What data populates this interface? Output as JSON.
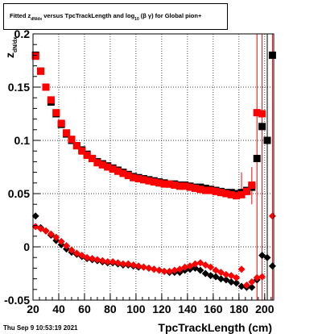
{
  "chart_data": {
    "type": "scatter",
    "title": {
      "prefix": "Fitted  z",
      "prefix_sub": "dN/dx",
      "middle": " versus TpcTrackLength and log",
      "middle_sub": "10",
      "paren": "(β  γ) for Global pion+"
    },
    "xlabel": "TpcTrackLength (cm)",
    "ylabel": "z",
    "ylabel_sub": "dN/dx",
    "xlim": [
      20,
      207
    ],
    "ylim": [
      -0.05,
      0.2
    ],
    "x_ticks": [
      20,
      40,
      60,
      80,
      100,
      120,
      140,
      160,
      180,
      200
    ],
    "y_ticks": [
      {
        "value": -0.05,
        "label": "-0.05"
      },
      {
        "value": 0,
        "label": "0"
      },
      {
        "value": 0.05,
        "label": "0.05"
      },
      {
        "value": 0.1,
        "label": "0.1"
      },
      {
        "value": 0.15,
        "label": "0.15"
      },
      {
        "value": 0.2,
        "label": "0.2"
      }
    ],
    "grid": true,
    "series": [
      {
        "marker": "square",
        "color": "#000000",
        "x": [
          22,
          26,
          30,
          34,
          38,
          42,
          46,
          50,
          54,
          58,
          62,
          66,
          70,
          74,
          78,
          82,
          86,
          90,
          94,
          98,
          102,
          106,
          110,
          114,
          118,
          122,
          126,
          130,
          134,
          138,
          142,
          146,
          150,
          154,
          158,
          162,
          166,
          170,
          174,
          178,
          182,
          186,
          190,
          194,
          198,
          202,
          206
        ],
        "y": [
          0.18,
          0.165,
          0.15,
          0.136,
          0.125,
          0.115,
          0.106,
          0.1,
          0.095,
          0.091,
          0.087,
          0.083,
          0.08,
          0.078,
          0.076,
          0.074,
          0.072,
          0.07,
          0.068,
          0.066,
          0.065,
          0.064,
          0.063,
          0.062,
          0.061,
          0.06,
          0.059,
          0.059,
          0.058,
          0.058,
          0.057,
          0.056,
          0.056,
          0.055,
          0.054,
          0.053,
          0.052,
          0.051,
          0.051,
          0.05,
          0.051,
          0.053,
          0.056,
          0.083,
          0.113,
          0.1,
          0.18
        ]
      },
      {
        "marker": "square",
        "color": "#ff0000",
        "x": [
          22,
          26,
          30,
          34,
          38,
          42,
          46,
          50,
          54,
          58,
          62,
          66,
          70,
          74,
          78,
          82,
          86,
          90,
          94,
          98,
          102,
          106,
          110,
          114,
          118,
          122,
          126,
          130,
          134,
          138,
          142,
          146,
          150,
          154,
          158,
          162,
          166,
          170,
          174,
          178,
          182,
          186,
          190,
          194,
          198
        ],
        "y": [
          0.179,
          0.165,
          0.15,
          0.138,
          0.126,
          0.116,
          0.107,
          0.101,
          0.095,
          0.09,
          0.086,
          0.083,
          0.079,
          0.077,
          0.075,
          0.073,
          0.071,
          0.069,
          0.067,
          0.065,
          0.064,
          0.063,
          0.062,
          0.061,
          0.06,
          0.059,
          0.059,
          0.058,
          0.057,
          0.057,
          0.056,
          0.055,
          0.054,
          0.053,
          0.053,
          0.052,
          0.051,
          0.05,
          0.049,
          0.048,
          0.049,
          0.052,
          0.058,
          0.126,
          0.125
        ]
      },
      {
        "marker": "diamond",
        "color": "#000000",
        "x": [
          22,
          26,
          30,
          34,
          38,
          42,
          46,
          50,
          54,
          58,
          62,
          66,
          70,
          74,
          78,
          82,
          86,
          90,
          94,
          98,
          102,
          106,
          110,
          114,
          118,
          122,
          126,
          130,
          134,
          138,
          142,
          146,
          150,
          154,
          158,
          162,
          166,
          170,
          174,
          178,
          182,
          186,
          190,
          194,
          198,
          202,
          206
        ],
        "y": [
          0.029,
          0.018,
          0.015,
          0.011,
          0.006,
          0.002,
          -0.002,
          -0.005,
          -0.007,
          -0.009,
          -0.011,
          -0.012,
          -0.013,
          -0.014,
          -0.015,
          -0.015,
          -0.016,
          -0.017,
          -0.017,
          -0.018,
          -0.019,
          -0.019,
          -0.02,
          -0.021,
          -0.022,
          -0.023,
          -0.024,
          -0.024,
          -0.024,
          -0.022,
          -0.021,
          -0.02,
          -0.022,
          -0.025,
          -0.027,
          -0.028,
          -0.03,
          -0.031,
          -0.033,
          -0.034,
          -0.037,
          -0.038,
          -0.038,
          -0.031,
          -0.008,
          -0.01,
          -0.018
        ]
      },
      {
        "marker": "diamond",
        "color": "#ff0000",
        "x": [
          22,
          26,
          30,
          34,
          38,
          42,
          46,
          50,
          54,
          58,
          62,
          66,
          70,
          74,
          78,
          82,
          86,
          90,
          94,
          98,
          102,
          106,
          110,
          114,
          118,
          122,
          126,
          130,
          134,
          138,
          142,
          146,
          150,
          154,
          158,
          162,
          166,
          170,
          174,
          178,
          182,
          186,
          190,
          194,
          198,
          206
        ],
        "y": [
          0.019,
          0.017,
          0.015,
          0.012,
          0.009,
          0.005,
          0.001,
          -0.003,
          -0.006,
          -0.008,
          -0.01,
          -0.011,
          -0.012,
          -0.013,
          -0.014,
          -0.014,
          -0.015,
          -0.016,
          -0.016,
          -0.017,
          -0.018,
          -0.019,
          -0.02,
          -0.021,
          -0.022,
          -0.023,
          -0.023,
          -0.022,
          -0.021,
          -0.019,
          -0.018,
          -0.016,
          -0.015,
          -0.017,
          -0.019,
          -0.022,
          -0.024,
          -0.026,
          -0.027,
          -0.029,
          -0.021,
          -0.036,
          -0.033,
          -0.029,
          -0.028,
          0.029
        ]
      }
    ],
    "error_bars": [
      {
        "x": 182,
        "low": 0.048,
        "high": 0.07,
        "color": "#ff0000"
      },
      {
        "x": 190,
        "low": 0.04,
        "high": 0.075,
        "color": "#ff0000"
      },
      {
        "x": 194,
        "low": -0.05,
        "high": 0.2,
        "color": "#ff0000"
      },
      {
        "x": 198,
        "low": -0.05,
        "high": 0.2,
        "color": "#ff0000"
      },
      {
        "x": 202,
        "low": -0.05,
        "high": 0.2,
        "color": "#000000"
      },
      {
        "x": 206,
        "low": -0.05,
        "high": 0.2,
        "color": "#ff0000"
      }
    ]
  },
  "footer": {
    "date": "Thu Sep  9 10:53:19 2021"
  }
}
